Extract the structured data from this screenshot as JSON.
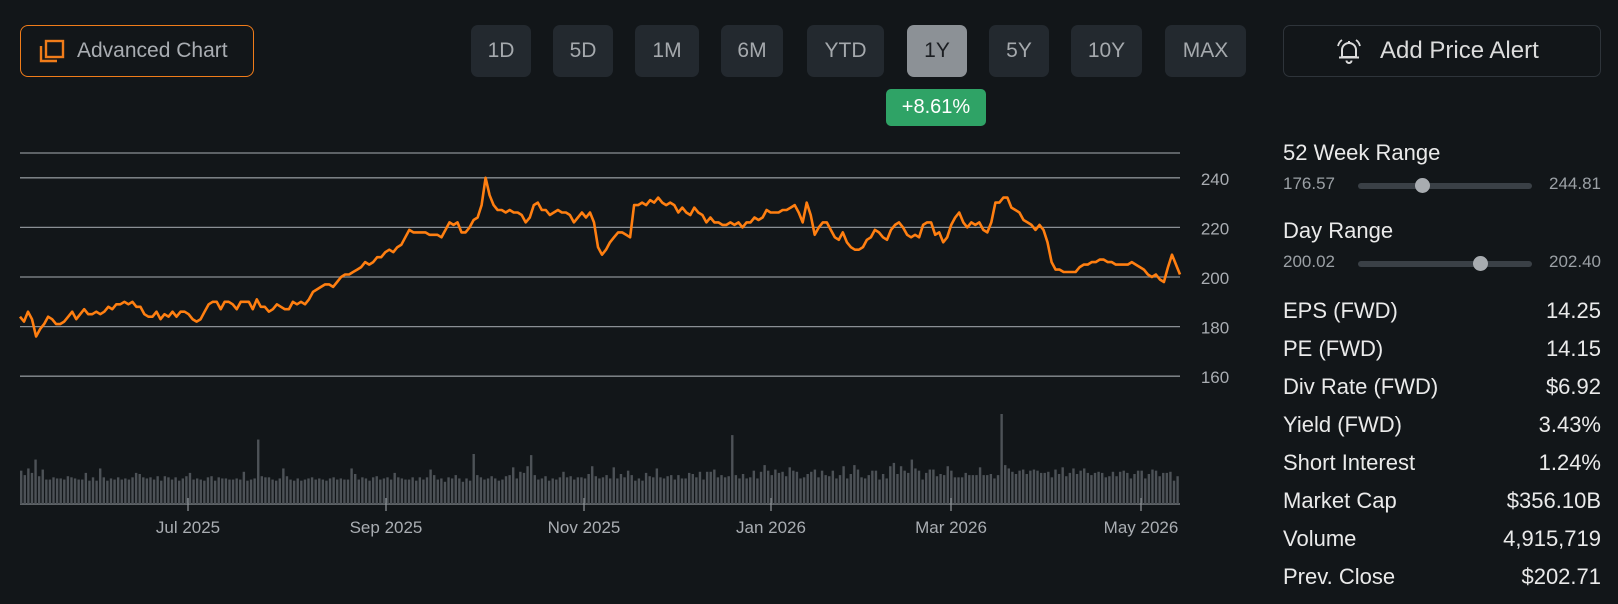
{
  "toolbar": {
    "advanced_chart_label": "Advanced Chart",
    "add_alert_label": "Add Price Alert",
    "accent_color": "#f07c1a"
  },
  "range_buttons": [
    {
      "label": "1D",
      "active": false
    },
    {
      "label": "5D",
      "active": false
    },
    {
      "label": "1M",
      "active": false
    },
    {
      "label": "6M",
      "active": false
    },
    {
      "label": "YTD",
      "active": false
    },
    {
      "label": "1Y",
      "active": true
    },
    {
      "label": "5Y",
      "active": false
    },
    {
      "label": "10Y",
      "active": false
    },
    {
      "label": "MAX",
      "active": false
    }
  ],
  "change_badge": {
    "label": "+8.61%",
    "color": "#2fa366"
  },
  "chart_data": {
    "type": "line",
    "y_ticks": [
      "240",
      "220",
      "200",
      "180",
      "160"
    ],
    "ylim": [
      150,
      250
    ],
    "x_ticks": [
      "Jul 2025",
      "Sep 2025",
      "Nov 2025",
      "Jan 2026",
      "Mar 2026",
      "May 2026"
    ],
    "line_color": "#ff7f11",
    "grid": true,
    "series": [
      {
        "values": [
          184,
          182,
          186,
          183,
          176,
          179,
          181,
          184,
          183,
          181,
          181,
          182,
          184,
          186,
          183,
          185,
          187,
          185,
          185,
          186,
          185,
          186,
          188,
          187,
          189,
          189,
          190,
          189,
          190,
          188,
          188,
          185,
          184,
          184,
          186,
          183,
          185,
          184,
          186,
          184,
          186,
          186,
          185,
          183,
          182,
          183,
          186,
          189,
          190,
          190,
          187,
          190,
          190,
          189,
          187,
          190,
          190,
          190,
          187,
          191,
          188,
          188,
          186,
          187,
          189,
          188,
          187,
          187,
          190,
          189,
          190,
          189,
          191,
          194,
          195,
          196,
          197,
          197,
          196,
          198,
          200,
          201,
          201,
          202,
          203,
          204,
          206,
          205,
          206,
          208,
          208,
          210,
          211,
          210,
          212,
          213,
          216,
          219,
          218,
          218,
          218,
          218,
          217,
          217,
          217,
          216,
          219,
          222,
          221,
          222,
          218,
          218,
          220,
          223,
          224,
          229,
          240,
          233,
          229,
          227,
          227,
          226,
          227,
          226,
          226,
          225,
          222,
          224,
          229,
          230,
          227,
          227,
          225,
          226,
          227,
          226,
          226,
          225,
          222,
          224,
          226,
          224,
          226,
          222,
          212,
          209,
          211,
          214,
          216,
          218,
          218,
          217,
          216,
          229,
          229,
          230,
          229,
          231,
          230,
          232,
          230,
          229,
          230,
          229,
          226,
          228,
          226,
          225,
          228,
          226,
          225,
          222,
          224,
          222,
          222,
          221,
          221,
          222,
          221,
          222,
          220,
          222,
          222,
          224,
          223,
          224,
          227,
          226,
          226,
          226,
          227,
          227,
          228,
          229,
          226,
          222,
          230,
          225,
          217,
          220,
          222,
          222,
          219,
          216,
          215,
          218,
          214,
          212,
          211,
          211,
          212,
          215,
          216,
          219,
          218,
          216,
          215,
          219,
          221,
          222,
          220,
          217,
          216,
          217,
          216,
          221,
          222,
          222,
          217,
          218,
          214,
          216,
          221,
          224,
          226,
          222,
          220,
          222,
          221,
          222,
          219,
          218,
          222,
          230,
          230,
          232,
          232,
          228,
          227,
          226,
          223,
          222,
          221,
          219,
          221,
          219,
          214,
          206,
          203,
          203,
          202,
          202,
          202,
          202,
          204,
          205,
          205,
          206,
          206,
          207,
          207,
          206,
          206,
          205,
          205,
          205,
          205,
          206,
          205,
          204,
          203,
          201,
          200,
          201,
          199,
          198,
          204,
          209,
          205,
          201
        ]
      }
    ],
    "volume": [
      30,
      26,
      32,
      28,
      40,
      25,
      31,
      22,
      22,
      24,
      23,
      23,
      22,
      25,
      24,
      23,
      22,
      22,
      28,
      21,
      24,
      21,
      32,
      24,
      21,
      23,
      22,
      24,
      22,
      23,
      22,
      24,
      28,
      27,
      24,
      23,
      24,
      22,
      25,
      21,
      25,
      24,
      22,
      24,
      21,
      23,
      25,
      28,
      22,
      23,
      22,
      21,
      24,
      25,
      21,
      24,
      23,
      23,
      22,
      22,
      23,
      22,
      29,
      21,
      22,
      23,
      58,
      25,
      24,
      24,
      22,
      21,
      23,
      32,
      25,
      22,
      21,
      23,
      21,
      22,
      23,
      24,
      22,
      23,
      22,
      21,
      23,
      24,
      22,
      23,
      22,
      22,
      32,
      27,
      22,
      24,
      23,
      21,
      24,
      25,
      22,
      23,
      24,
      22,
      28,
      24,
      23,
      22,
      22,
      24,
      21,
      24,
      22,
      24,
      31,
      26,
      22,
      23,
      20,
      24,
      23,
      26,
      23,
      20,
      23,
      21,
      45,
      26,
      24,
      22,
      23,
      25,
      23,
      21,
      22,
      25,
      26,
      33,
      23,
      29,
      28,
      34,
      44,
      26,
      22,
      23,
      25,
      21,
      23,
      22,
      24,
      29,
      24,
      25,
      22,
      24,
      24,
      23,
      27,
      34,
      25,
      23,
      24,
      26,
      23,
      33,
      23,
      27,
      24,
      30,
      26,
      21,
      23,
      21,
      28,
      25,
      24,
      32,
      24,
      23,
      25,
      26,
      22,
      26,
      23,
      23,
      28,
      27,
      24,
      29,
      22,
      29,
      29,
      31,
      24,
      26,
      24,
      25,
      62,
      26,
      23,
      27,
      23,
      24,
      30,
      23,
      29,
      35,
      30,
      26,
      31,
      28,
      29,
      25,
      33,
      30,
      29,
      23,
      24,
      27,
      29,
      31,
      24,
      30,
      26,
      25,
      30,
      23,
      26,
      34,
      23,
      27,
      35,
      31,
      24,
      23,
      26,
      30,
      30,
      22,
      27,
      23,
      34,
      37,
      27,
      34,
      30,
      28,
      40,
      32,
      30,
      22,
      28,
      31,
      31,
      25,
      27,
      26,
      34,
      30,
      24,
      24,
      24,
      28,
      26,
      26,
      26,
      33,
      26,
      26,
      27,
      23,
      26,
      81,
      35,
      32,
      29,
      27,
      30,
      31,
      27,
      30,
      31,
      30,
      28,
      28,
      29,
      24,
      31,
      27,
      33,
      25,
      28,
      32,
      27,
      30,
      32,
      28,
      26,
      28,
      29,
      28,
      24,
      25,
      29,
      25,
      29,
      30,
      28,
      23,
      27,
      30,
      30,
      23,
      27,
      31,
      30,
      25,
      28,
      28,
      29,
      21,
      25
    ]
  },
  "stats": {
    "week52": {
      "label": "52 Week Range",
      "min": "176.57",
      "max": "244.81",
      "position": 0.37
    },
    "day": {
      "label": "Day Range",
      "min": "200.02",
      "max": "202.40",
      "position": 0.7
    },
    "rows": [
      {
        "k": "EPS (FWD)",
        "v": "14.25"
      },
      {
        "k": "PE (FWD)",
        "v": "14.15"
      },
      {
        "k": "Div Rate (FWD)",
        "v": "$6.92"
      },
      {
        "k": "Yield (FWD)",
        "v": "3.43%"
      },
      {
        "k": "Short Interest",
        "v": "1.24%"
      },
      {
        "k": "Market Cap",
        "v": "$356.10B"
      },
      {
        "k": "Volume",
        "v": "4,915,719"
      },
      {
        "k": "Prev. Close",
        "v": "$202.71"
      }
    ]
  }
}
